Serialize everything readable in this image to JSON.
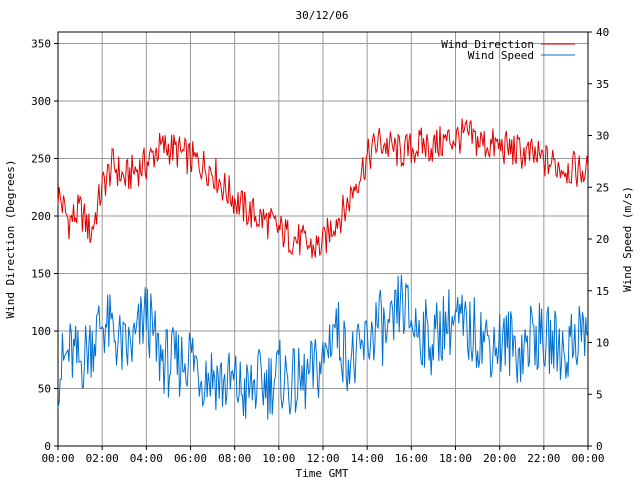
{
  "chart_data": {
    "type": "line",
    "title": "30/12/06",
    "xlabel": "Time GMT",
    "ylabel_left": "Wind Direction (Degrees)",
    "ylabel_right": "Wind Speed (m/s)",
    "x_ticks": [
      "00:00",
      "02:00",
      "04:00",
      "06:00",
      "08:00",
      "10:00",
      "12:00",
      "14:00",
      "16:00",
      "18:00",
      "20:00",
      "22:00",
      "00:00"
    ],
    "x_range_hours": [
      0,
      24
    ],
    "ylim_left": [
      0,
      360
    ],
    "y_ticks_left": [
      0,
      50,
      100,
      150,
      200,
      250,
      300,
      350
    ],
    "ylim_right": [
      0,
      40
    ],
    "y_ticks_right": [
      0,
      5,
      10,
      15,
      20,
      25,
      30,
      35,
      40
    ],
    "grid": true,
    "legend_position": "top-right",
    "series": [
      {
        "name": "Wind Direction",
        "axis": "left",
        "color": "#e00000",
        "x_hours": [
          0,
          0.5,
          1,
          1.5,
          2,
          2.5,
          3,
          3.5,
          4,
          4.5,
          5,
          5.5,
          6,
          6.5,
          7,
          7.5,
          8,
          8.5,
          9,
          9.5,
          10,
          10.5,
          11,
          11.5,
          12,
          12.5,
          13,
          13.5,
          14,
          14.5,
          15,
          15.5,
          16,
          16.5,
          17,
          17.5,
          18,
          18.5,
          19,
          19.5,
          20,
          20.5,
          21,
          21.5,
          22,
          22.5,
          23,
          23.5,
          24
        ],
        "values": [
          220,
          195,
          205,
          185,
          225,
          245,
          232,
          240,
          245,
          258,
          260,
          255,
          250,
          245,
          240,
          225,
          215,
          205,
          200,
          195,
          188,
          182,
          178,
          172,
          175,
          195,
          205,
          230,
          250,
          265,
          260,
          255,
          258,
          262,
          260,
          265,
          268,
          270,
          265,
          262,
          260,
          258,
          255,
          252,
          248,
          245,
          242,
          240,
          238
        ]
      },
      {
        "name": "Wind Speed",
        "axis": "right",
        "color": "#0070d0",
        "x_hours": [
          0,
          0.5,
          1,
          1.5,
          2,
          2.5,
          3,
          3.5,
          4,
          4.5,
          5,
          5.5,
          6,
          6.5,
          7,
          7.5,
          8,
          8.5,
          9,
          9.5,
          10,
          10.5,
          11,
          11.5,
          12,
          12.5,
          13,
          13.5,
          14,
          14.5,
          15,
          15.5,
          16,
          16.5,
          17,
          17.5,
          18,
          18.5,
          19,
          19.5,
          20,
          20.5,
          21,
          21.5,
          22,
          22.5,
          23,
          23.5,
          24
        ],
        "values": [
          7,
          9,
          8,
          10,
          12,
          11,
          9,
          10,
          13,
          9,
          8,
          8,
          9,
          7,
          7,
          6,
          6,
          5,
          6,
          6,
          7,
          6,
          6,
          7,
          8,
          12,
          9,
          8,
          10,
          12,
          10,
          14,
          12,
          11,
          10,
          12,
          12,
          11,
          11,
          10,
          10,
          10,
          9,
          11,
          10,
          10,
          9,
          11,
          11
        ]
      }
    ]
  }
}
